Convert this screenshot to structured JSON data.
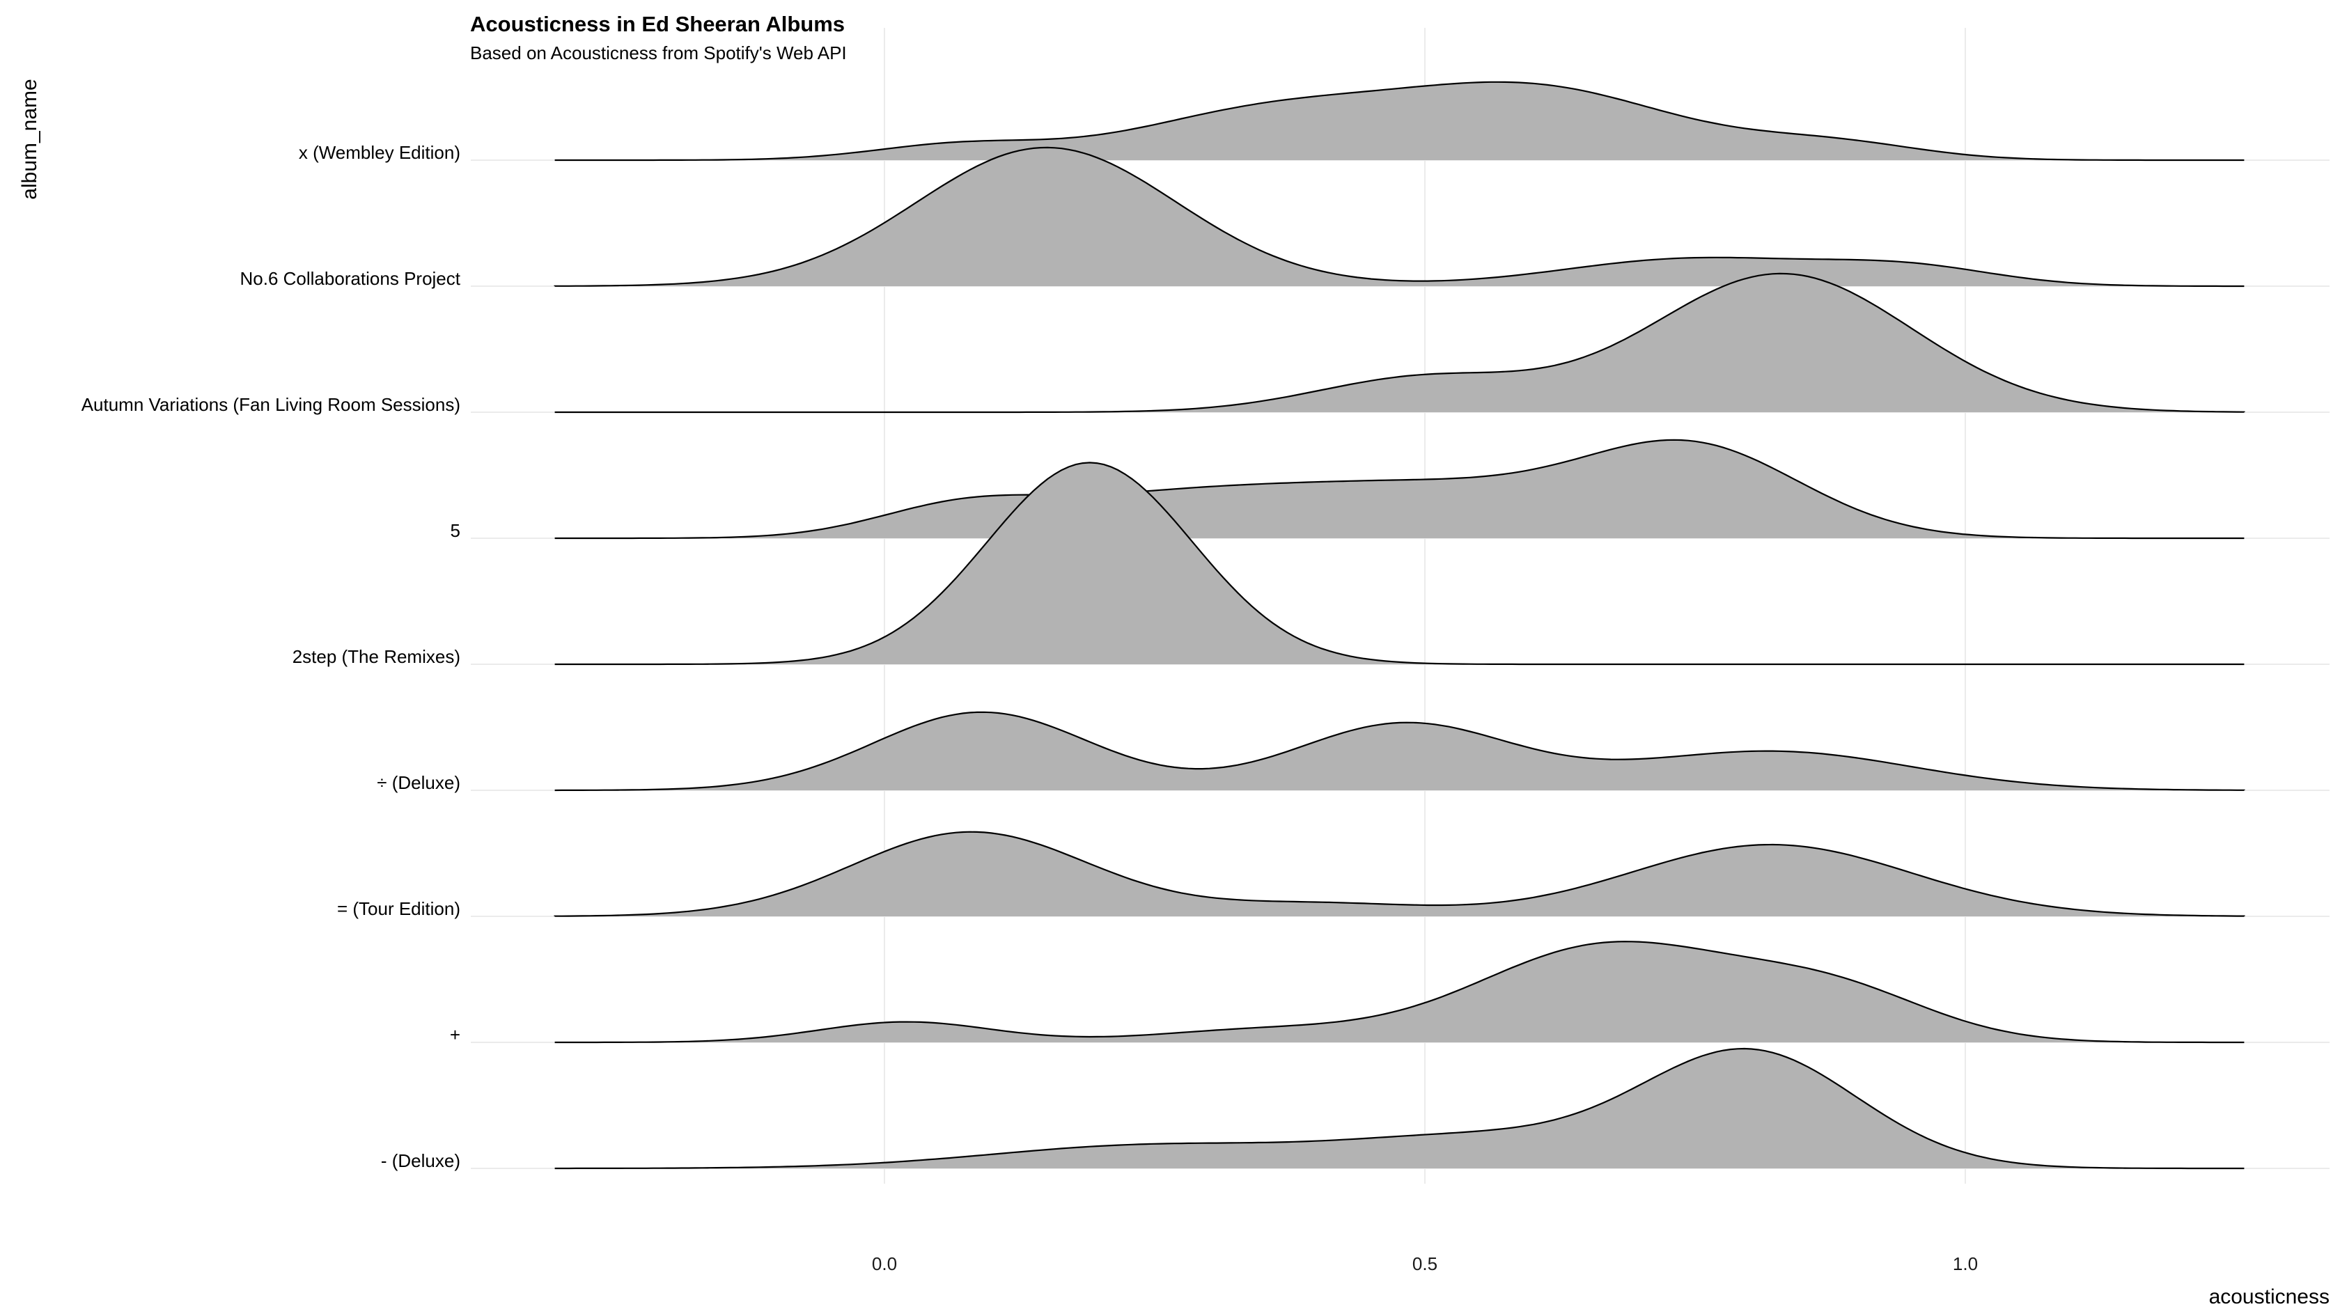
{
  "chart_data": {
    "type": "ridgeline",
    "title": "Acousticness in Ed Sheeran Albums",
    "subtitle": "Based on Acousticness from Spotify's Web API",
    "xlabel": "acousticness",
    "ylabel": "album_name",
    "xlim": [
      -0.38,
      1.3
    ],
    "x_ticks": [
      "0.0",
      "0.5",
      "1.0"
    ],
    "x_tick_values": [
      0,
      0.5,
      1.0
    ],
    "density_range": [
      -0.305,
      1.258
    ],
    "grid": true,
    "fill_color": "#b3b3b3",
    "line_color": "#000000",
    "series": [
      {
        "name": "x (Wembley Edition)",
        "peak_height": 0.62,
        "components": [
          [
            0.35,
            0.12,
            0.45
          ],
          [
            0.07,
            0.08,
            0.15
          ],
          [
            0.6,
            0.13,
            0.7
          ],
          [
            0.88,
            0.08,
            0.15
          ]
        ]
      },
      {
        "name": "No.6 Collaborations Project",
        "peak_height": 1.1,
        "components": [
          [
            0.15,
            0.12,
            1.0
          ],
          [
            0.75,
            0.12,
            0.2
          ],
          [
            0.95,
            0.08,
            0.12
          ]
        ]
      },
      {
        "name": "Autumn Variations (Fan Living Room Sessions)",
        "peak_height": 1.1,
        "components": [
          [
            0.83,
            0.12,
            1.0
          ],
          [
            0.5,
            0.1,
            0.25
          ]
        ]
      },
      {
        "name": "5",
        "peak_height": 0.78,
        "components": [
          [
            0.75,
            0.1,
            0.9
          ],
          [
            0.5,
            0.15,
            0.55
          ],
          [
            0.07,
            0.08,
            0.3
          ],
          [
            0.25,
            0.12,
            0.35
          ]
        ]
      },
      {
        "name": "2step (The Remixes)",
        "peak_height": 1.6,
        "components": [
          [
            0.19,
            0.095,
            1.0
          ]
        ]
      },
      {
        "name": "÷ (Deluxe)",
        "peak_height": 0.62,
        "components": [
          [
            0.09,
            0.1,
            1.0
          ],
          [
            0.48,
            0.1,
            0.85
          ],
          [
            0.82,
            0.13,
            0.5
          ]
        ]
      },
      {
        "name": "= (Tour Edition)",
        "peak_height": 0.67,
        "components": [
          [
            0.08,
            0.11,
            1.0
          ],
          [
            0.82,
            0.13,
            0.85
          ],
          [
            0.4,
            0.1,
            0.15
          ]
        ]
      },
      {
        "name": "+",
        "peak_height": 0.8,
        "components": [
          [
            0.02,
            0.08,
            0.2
          ],
          [
            0.67,
            0.12,
            0.95
          ],
          [
            0.88,
            0.09,
            0.45
          ],
          [
            0.35,
            0.1,
            0.12
          ]
        ]
      },
      {
        "name": "- (Deluxe)",
        "peak_height": 0.95,
        "components": [
          [
            0.8,
            0.1,
            1.0
          ],
          [
            0.25,
            0.15,
            0.2
          ],
          [
            0.55,
            0.12,
            0.25
          ]
        ]
      }
    ]
  }
}
